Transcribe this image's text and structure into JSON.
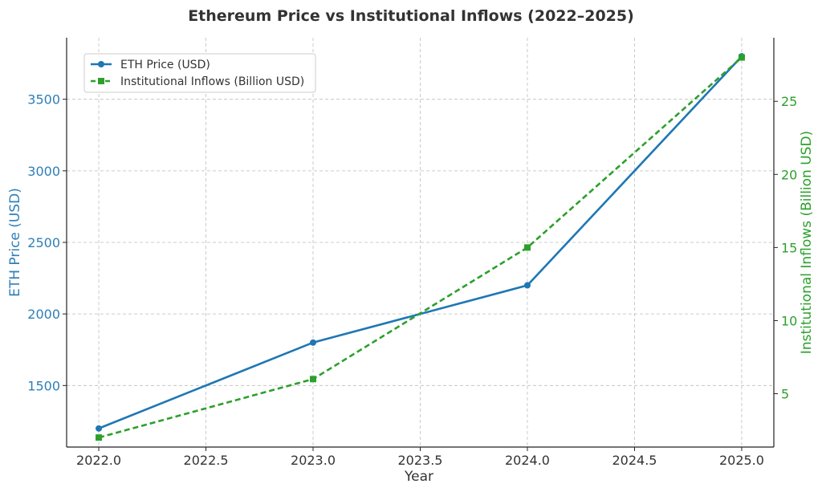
{
  "chart_data": {
    "type": "line",
    "title": "Ethereum Price vs Institutional Inflows (2022–2025)",
    "xlabel": "Year",
    "ylabel_left": "ETH Price (USD)",
    "ylabel_right": "Institutional Inflows (Billion USD)",
    "x": [
      2022,
      2023,
      2024,
      2025
    ],
    "xlim": [
      2021.85,
      2025.15
    ],
    "x_ticks": [
      2022.0,
      2022.5,
      2023.0,
      2023.5,
      2024.0,
      2024.5,
      2025.0
    ],
    "x_tick_labels": [
      "2022.0",
      "2022.5",
      "2023.0",
      "2023.5",
      "2024.0",
      "2024.5",
      "2025.0"
    ],
    "ylim_left": [
      1070,
      3930
    ],
    "ylim_right": [
      1.35,
      29.35
    ],
    "y_ticks_left": [
      1500,
      2000,
      2500,
      3000,
      3500
    ],
    "y_ticks_right": [
      5,
      10,
      15,
      20,
      25
    ],
    "grid": true,
    "legend_position": "upper-left",
    "colors": {
      "left_axis": "#2e7fb8",
      "right_axis": "#2ca02c",
      "axis": "#222222",
      "tick_text": "#333333"
    },
    "series": [
      {
        "name": "ETH Price (USD)",
        "axis": "left",
        "values": [
          1200,
          1800,
          2200,
          3800
        ],
        "color": "#1f77b4",
        "line_style": "solid",
        "marker": "circle"
      },
      {
        "name": "Institutional Inflows (Billion USD)",
        "axis": "right",
        "values": [
          2,
          6,
          15,
          28
        ],
        "color": "#2ca02c",
        "line_style": "dashed",
        "marker": "square"
      }
    ]
  }
}
